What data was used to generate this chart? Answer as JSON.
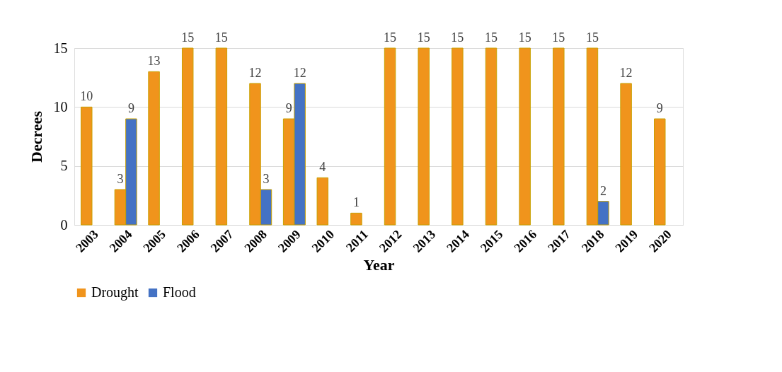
{
  "chart_data": {
    "type": "bar",
    "xlabel": "Year",
    "ylabel": "Decrees",
    "categories": [
      "2003",
      "2004",
      "2005",
      "2006",
      "2007",
      "2008",
      "2009",
      "2010",
      "2011",
      "2012",
      "2013",
      "2014",
      "2015",
      "2016",
      "2017",
      "2018",
      "2019",
      "2020"
    ],
    "series": [
      {
        "name": "Drought",
        "color": "#f0941c",
        "values": [
          10,
          3,
          13,
          15,
          15,
          12,
          9,
          4,
          1,
          15,
          15,
          15,
          15,
          15,
          15,
          15,
          12,
          9
        ]
      },
      {
        "name": "Flood",
        "color": "#4472c4",
        "values": [
          null,
          9,
          null,
          null,
          null,
          3,
          12,
          null,
          null,
          null,
          null,
          null,
          null,
          null,
          null,
          2,
          null,
          null
        ]
      }
    ],
    "ylim": [
      0,
      15
    ],
    "yticks": [
      0,
      5,
      10,
      15
    ],
    "grid": "y",
    "legend": "bottom",
    "data_labels": true
  }
}
